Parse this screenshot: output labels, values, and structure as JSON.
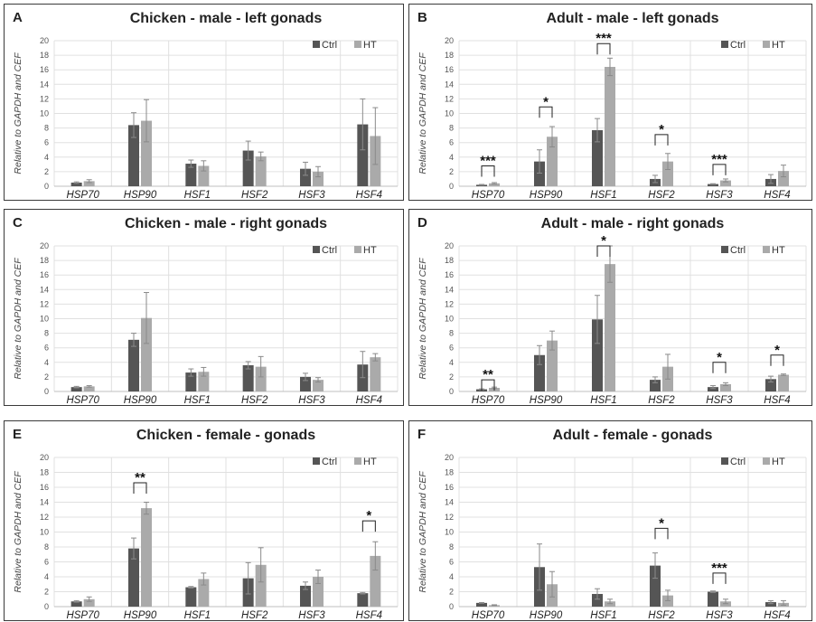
{
  "colors": {
    "ctrl": "#555555",
    "ht": "#aaaaaa",
    "grid": "#e0e0e0",
    "axis": "#bfbfbf",
    "error": "#8a8a8a",
    "bracket": "#222222"
  },
  "chart_data": [
    {
      "panel": "A",
      "type": "bar",
      "title": "Chicken - male - left gonads",
      "ylabel": "Relative to GAPDH and CEF",
      "ylim": [
        0,
        20
      ],
      "yticks": [
        0,
        2,
        4,
        6,
        8,
        10,
        12,
        14,
        16,
        18,
        20
      ],
      "legend_placement": "top-right",
      "grid": true,
      "categories": [
        "HSP70",
        "HSP90",
        "HSF1",
        "HSF2",
        "HSF3",
        "HSF4"
      ],
      "series": [
        {
          "name": "Ctrl",
          "values": [
            0.5,
            8.4,
            3.1,
            4.9,
            2.4,
            8.5
          ],
          "errors": [
            0.1,
            1.7,
            0.5,
            1.3,
            0.9,
            3.5
          ]
        },
        {
          "name": "HT",
          "values": [
            0.7,
            9.0,
            2.8,
            4.1,
            2.0,
            6.9
          ],
          "errors": [
            0.2,
            2.9,
            0.7,
            0.6,
            0.7,
            3.9
          ]
        }
      ],
      "significance": []
    },
    {
      "panel": "B",
      "type": "bar",
      "title": "Adult - male - left gonads",
      "ylabel": "Relative to GAPDH and CEF",
      "ylim": [
        0,
        20
      ],
      "yticks": [
        0,
        2,
        4,
        6,
        8,
        10,
        12,
        14,
        16,
        18,
        20
      ],
      "legend_placement": "top-right",
      "grid": true,
      "categories": [
        "HSP70",
        "HSP90",
        "HSF1",
        "HSF2",
        "HSF3",
        "HSF4"
      ],
      "series": [
        {
          "name": "Ctrl",
          "values": [
            0.2,
            3.4,
            7.7,
            1.0,
            0.3,
            1.0
          ],
          "errors": [
            0.05,
            1.6,
            1.6,
            0.5,
            0.05,
            0.6
          ]
        },
        {
          "name": "HT",
          "values": [
            0.4,
            6.8,
            16.4,
            3.4,
            0.8,
            2.1
          ],
          "errors": [
            0.1,
            1.4,
            1.2,
            1.1,
            0.2,
            0.8
          ]
        }
      ],
      "significance": [
        {
          "category": "HSP70",
          "label": "***",
          "y": 2.8
        },
        {
          "category": "HSP90",
          "label": "*",
          "y": 10.9
        },
        {
          "category": "HSF1",
          "label": "***",
          "y": 19.6
        },
        {
          "category": "HSF2",
          "label": "*",
          "y": 7.1
        },
        {
          "category": "HSF3",
          "label": "***",
          "y": 3.0
        }
      ]
    },
    {
      "panel": "C",
      "type": "bar",
      "title": "Chicken - male - right gonads",
      "ylabel": "Relative to GAPDH and CEF",
      "ylim": [
        0,
        20
      ],
      "yticks": [
        0,
        2,
        4,
        6,
        8,
        10,
        12,
        14,
        16,
        18,
        20
      ],
      "legend_placement": "top-right",
      "grid": true,
      "categories": [
        "HSP70",
        "HSP90",
        "HSF1",
        "HSF2",
        "HSF3",
        "HSF4"
      ],
      "series": [
        {
          "name": "Ctrl",
          "values": [
            0.6,
            7.1,
            2.6,
            3.6,
            2.0,
            3.7
          ],
          "errors": [
            0.1,
            0.9,
            0.5,
            0.5,
            0.5,
            1.8
          ]
        },
        {
          "name": "HT",
          "values": [
            0.7,
            10.1,
            2.7,
            3.4,
            1.6,
            4.7
          ],
          "errors": [
            0.1,
            3.5,
            0.6,
            1.4,
            0.3,
            0.5
          ]
        }
      ],
      "significance": []
    },
    {
      "panel": "D",
      "type": "bar",
      "title": "Adult - male - right gonads",
      "ylabel": "Relative to GAPDH and CEF",
      "ylim": [
        0,
        20
      ],
      "yticks": [
        0,
        2,
        4,
        6,
        8,
        10,
        12,
        14,
        16,
        18,
        20
      ],
      "legend_placement": "top-right",
      "grid": true,
      "categories": [
        "HSP70",
        "HSP90",
        "HSF1",
        "HSF2",
        "HSF3",
        "HSF4"
      ],
      "series": [
        {
          "name": "Ctrl",
          "values": [
            0.3,
            5.0,
            9.9,
            1.6,
            0.6,
            1.7
          ],
          "errors": [
            0.05,
            1.3,
            3.3,
            0.4,
            0.2,
            0.4
          ]
        },
        {
          "name": "HT",
          "values": [
            0.5,
            7.0,
            17.5,
            3.4,
            1.0,
            2.3
          ],
          "errors": [
            0.1,
            1.3,
            2.5,
            1.7,
            0.2,
            0.1
          ]
        }
      ],
      "significance": [
        {
          "category": "HSP70",
          "label": "**",
          "y": 1.6
        },
        {
          "category": "HSF1",
          "label": "*",
          "y": 20.0
        },
        {
          "category": "HSF3",
          "label": "*",
          "y": 4.0
        },
        {
          "category": "HSF4",
          "label": "*",
          "y": 5.0
        }
      ]
    },
    {
      "panel": "E",
      "type": "bar",
      "title": "Chicken - female - gonads",
      "ylabel": "Relative to GAPDH and CEF",
      "ylim": [
        0,
        20
      ],
      "yticks": [
        0,
        2,
        4,
        6,
        8,
        10,
        12,
        14,
        16,
        18,
        20
      ],
      "legend_placement": "top-right",
      "grid": true,
      "categories": [
        "HSP70",
        "HSP90",
        "HSF1",
        "HSF2",
        "HSF3",
        "HSF4"
      ],
      "series": [
        {
          "name": "Ctrl",
          "values": [
            0.7,
            7.8,
            2.6,
            3.8,
            2.8,
            1.8
          ],
          "errors": [
            0.1,
            1.4,
            0.1,
            2.1,
            0.5,
            0.1
          ]
        },
        {
          "name": "HT",
          "values": [
            1.0,
            13.2,
            3.7,
            5.6,
            4.0,
            6.8
          ],
          "errors": [
            0.3,
            0.8,
            0.8,
            2.3,
            0.9,
            1.9
          ]
        }
      ],
      "significance": [
        {
          "category": "HSP90",
          "label": "**",
          "y": 16.6
        },
        {
          "category": "HSF4",
          "label": "*",
          "y": 11.5
        }
      ]
    },
    {
      "panel": "F",
      "type": "bar",
      "title": "Adult - female - gonads",
      "ylabel": "Relative to GAPDH and CEF",
      "ylim": [
        0,
        20
      ],
      "yticks": [
        0,
        2,
        4,
        6,
        8,
        10,
        12,
        14,
        16,
        18,
        20
      ],
      "legend_placement": "top-right",
      "grid": true,
      "categories": [
        "HSP70",
        "HSP90",
        "HSF1",
        "HSF2",
        "HSF3",
        "HSF4"
      ],
      "series": [
        {
          "name": "Ctrl",
          "values": [
            0.5,
            5.3,
            1.7,
            5.5,
            2.0,
            0.6
          ],
          "errors": [
            0.05,
            3.1,
            0.7,
            1.7,
            0.1,
            0.2
          ]
        },
        {
          "name": "HT",
          "values": [
            0.2,
            3.0,
            0.7,
            1.5,
            0.7,
            0.5
          ],
          "errors": [
            0.05,
            1.7,
            0.3,
            0.7,
            0.3,
            0.3
          ]
        }
      ],
      "significance": [
        {
          "category": "HSF2",
          "label": "*",
          "y": 10.5
        },
        {
          "category": "HSF3",
          "label": "***",
          "y": 4.5
        }
      ]
    }
  ]
}
